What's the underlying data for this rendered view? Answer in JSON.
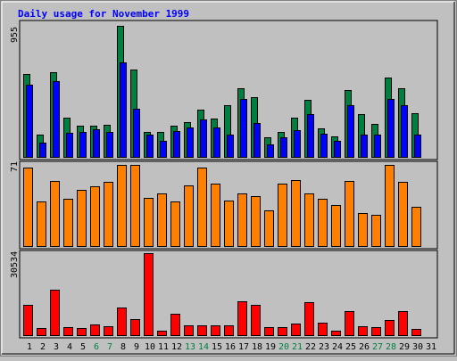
{
  "title": "Daily usage for November 1999",
  "colors": {
    "background": "#c0c0c0",
    "title": "#0000ff",
    "hits": "#008040",
    "files": "#0000ff",
    "pages": "#ff8000",
    "kbytes": "#ff0000",
    "weekend_label": "#008040",
    "weekday_label": "#000000"
  },
  "chart_data": [
    {
      "type": "bar",
      "title": "Daily usage for November 1999",
      "panel": "top",
      "categories": [
        "1",
        "2",
        "3",
        "4",
        "5",
        "6",
        "7",
        "8",
        "9",
        "10",
        "11",
        "12",
        "13",
        "14",
        "15",
        "16",
        "17",
        "18",
        "19",
        "20",
        "21",
        "22",
        "23",
        "24",
        "25",
        "26",
        "27",
        "28",
        "29",
        "30",
        "31"
      ],
      "weekend_days": [
        "6",
        "7",
        "13",
        "14",
        "20",
        "21",
        "27",
        "28"
      ],
      "ymax_label": "955",
      "ylim": [
        0,
        955
      ],
      "series": [
        {
          "values": [
            605,
            165,
            620,
            285,
            225,
            225,
            235,
            955,
            635,
            185,
            180,
            225,
            255,
            345,
            280,
            375,
            500,
            435,
            145,
            185,
            285,
            415,
            210,
            150,
            490,
            310,
            240,
            575,
            500,
            320,
            0
          ]
        },
        {
          "values": [
            525,
            105,
            555,
            175,
            180,
            200,
            185,
            690,
            350,
            165,
            115,
            190,
            215,
            275,
            215,
            165,
            420,
            250,
            90,
            145,
            195,
            310,
            170,
            120,
            380,
            165,
            165,
            425,
            380,
            165,
            0
          ]
        }
      ]
    },
    {
      "type": "bar",
      "panel": "middle",
      "categories": [
        "1",
        "2",
        "3",
        "4",
        "5",
        "6",
        "7",
        "8",
        "9",
        "10",
        "11",
        "12",
        "13",
        "14",
        "15",
        "16",
        "17",
        "18",
        "19",
        "20",
        "21",
        "22",
        "23",
        "24",
        "25",
        "26",
        "27",
        "28",
        "29",
        "30",
        "31"
      ],
      "ymax_label": "71",
      "ylim": [
        0,
        71
      ],
      "series": [
        {
          "values": [
            69,
            39,
            57,
            41,
            49,
            52,
            56,
            71,
            71,
            42,
            46,
            39,
            53,
            69,
            55,
            40,
            46,
            44,
            31,
            55,
            58,
            46,
            41,
            36,
            57,
            29,
            27,
            71,
            56,
            34,
            0
          ]
        }
      ]
    },
    {
      "type": "bar",
      "panel": "bottom",
      "categories": [
        "1",
        "2",
        "3",
        "4",
        "5",
        "6",
        "7",
        "8",
        "9",
        "10",
        "11",
        "12",
        "13",
        "14",
        "15",
        "16",
        "17",
        "18",
        "19",
        "20",
        "21",
        "22",
        "23",
        "24",
        "25",
        "26",
        "27",
        "28",
        "29",
        "30",
        "31"
      ],
      "ymax_label": "30534",
      "ylim": [
        0,
        30534
      ],
      "series": [
        {
          "values": [
            11200,
            2700,
            16800,
            3100,
            2600,
            4000,
            3300,
            10400,
            5900,
            30534,
            1600,
            7800,
            3500,
            3800,
            3500,
            3800,
            12600,
            11200,
            2900,
            2900,
            4200,
            12200,
            4500,
            1800,
            8800,
            3300,
            3100,
            5600,
            8800,
            2400,
            0
          ]
        }
      ]
    }
  ]
}
